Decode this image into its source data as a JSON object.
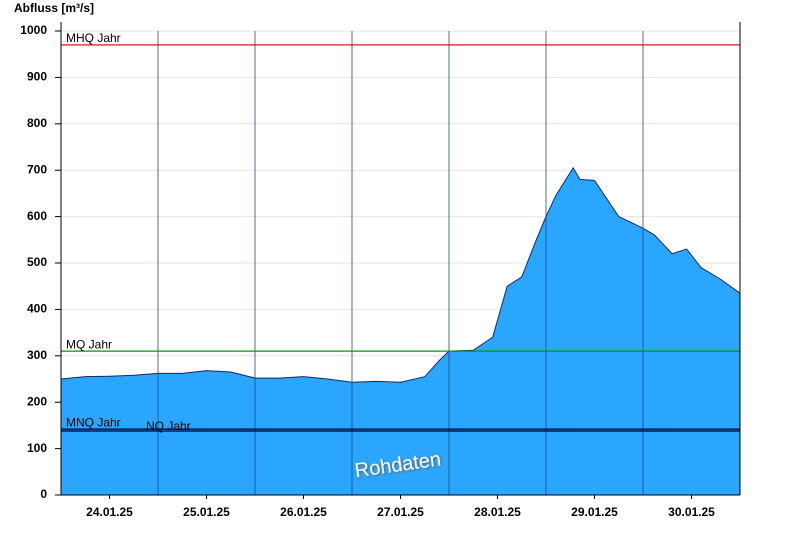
{
  "chart_data": {
    "type": "area",
    "y_label": "Abfluss [m³/s]",
    "watermark": "Rohdaten",
    "xlim": [
      0,
      7
    ],
    "xticks": [
      {
        "value": 0.5,
        "label": "24.01.25"
      },
      {
        "value": 1.5,
        "label": "25.01.25"
      },
      {
        "value": 2.5,
        "label": "26.01.25"
      },
      {
        "value": 3.5,
        "label": "27.01.25"
      },
      {
        "value": 4.5,
        "label": "28.01.25"
      },
      {
        "value": 5.5,
        "label": "29.01.25"
      },
      {
        "value": 6.5,
        "label": "30.01.25"
      }
    ],
    "ylim": [
      0,
      1000
    ],
    "yticks": [
      0,
      100,
      200,
      300,
      400,
      500,
      600,
      700,
      800,
      900,
      1000
    ],
    "grid": true,
    "x": [
      0,
      0.25,
      0.5,
      0.75,
      1,
      1.25,
      1.5,
      1.75,
      2,
      2.25,
      2.5,
      2.75,
      3,
      3.25,
      3.5,
      3.75,
      3.9,
      4,
      4.25,
      4.45,
      4.6,
      4.75,
      4.9,
      5,
      5.1,
      5.28,
      5.35,
      5.5,
      5.75,
      6,
      6.12,
      6.3,
      6.45,
      6.6,
      6.8,
      7
    ],
    "series": [
      {
        "color": "#2aa6ff",
        "values": [
          250,
          255,
          256,
          258,
          262,
          262,
          268,
          265,
          252,
          252,
          255,
          250,
          243,
          245,
          243,
          255,
          290,
          310,
          312,
          340,
          450,
          470,
          550,
          600,
          645,
          705,
          680,
          678,
          600,
          575,
          560,
          520,
          530,
          490,
          465,
          435
        ]
      }
    ],
    "ref_lines": [
      {
        "name": "MHQ Jahr",
        "value": 970,
        "color": "#cc0000"
      },
      {
        "name": "MQ Jahr",
        "value": 310,
        "color": "#009900"
      },
      {
        "name": "MNQ Jahr",
        "value": 142,
        "color": "#000033"
      },
      {
        "name": "NQ Jahr",
        "value": 138,
        "color": "#000033"
      }
    ]
  }
}
